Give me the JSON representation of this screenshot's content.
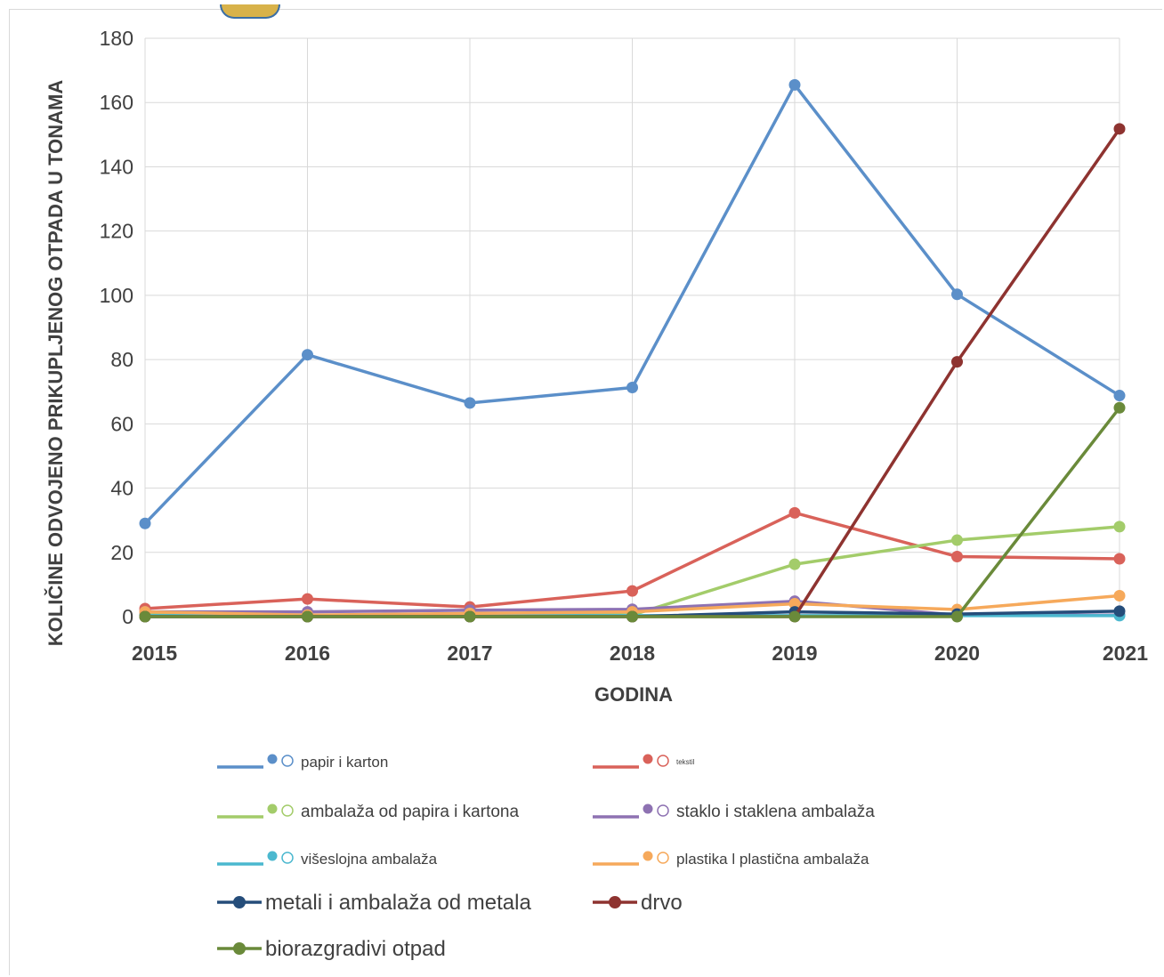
{
  "chart_data": {
    "type": "line",
    "title": "",
    "xlabel": "GODINA",
    "ylabel": "KOLIČINE  ODVOJENO PRIKUPLJENOG OTPADA U TONAMA",
    "ylim": [
      0,
      180
    ],
    "yticks": [
      0,
      20,
      40,
      60,
      80,
      100,
      120,
      140,
      160,
      180
    ],
    "grid": true,
    "legend_position": "bottom",
    "x": [
      "2015",
      "2016",
      "2017",
      "2018",
      "2019",
      "2020",
      "2021"
    ],
    "series": [
      {
        "name": "papir i karton",
        "color": "#5b8fc9",
        "values": [
          29,
          81.5,
          66.5,
          71.3,
          165.5,
          100.3,
          68.8
        ]
      },
      {
        "name": "tekstil",
        "color": "#d9625a",
        "values": [
          2.5,
          5.5,
          3,
          8,
          32.3,
          18.7,
          18
        ]
      },
      {
        "name": "ambalaža od papira i kartona",
        "color": "#a3cc6a",
        "values": [
          0.5,
          0.5,
          0.5,
          0.5,
          16.3,
          23.8,
          28
        ]
      },
      {
        "name": "staklo i staklena ambalaža",
        "color": "#8e72b2",
        "values": [
          1.5,
          1.5,
          2,
          2.3,
          4.8,
          0.5,
          0.5
        ]
      },
      {
        "name": "višeslojna ambalaža",
        "color": "#4bb8cf",
        "values": [
          0.3,
          0.3,
          0.3,
          0.3,
          0.3,
          0.3,
          0.3
        ]
      },
      {
        "name": "plastika l plastična ambalaža",
        "color": "#f6a95b",
        "values": [
          1.5,
          0.5,
          1,
          1.5,
          4,
          2.2,
          6.5
        ]
      },
      {
        "name": "metali i ambalaža od metala",
        "color": "#254d7a",
        "values": [
          0,
          0,
          0,
          0,
          1.5,
          0.8,
          1.7
        ]
      },
      {
        "name": "drvo",
        "color": "#8e3330",
        "values": [
          0,
          0,
          0,
          0,
          0,
          79.3,
          151.8
        ]
      },
      {
        "name": "biorazgradivi otpad",
        "color": "#6a8a3a",
        "values": [
          0,
          0,
          0,
          0,
          0,
          0,
          65
        ]
      }
    ]
  },
  "legend": {
    "rows": [
      [
        {
          "series": 0,
          "style": "small"
        },
        {
          "series": 1,
          "style": "tiny"
        }
      ],
      [
        {
          "series": 2,
          "style": "mid"
        },
        {
          "series": 3,
          "style": "mid"
        }
      ],
      [
        {
          "series": 4,
          "style": "small"
        },
        {
          "series": 5,
          "style": "small"
        }
      ],
      [
        {
          "series": 6,
          "style": "big"
        },
        {
          "series": 7,
          "style": "big"
        }
      ],
      [
        {
          "series": 8,
          "style": "big"
        }
      ]
    ]
  }
}
